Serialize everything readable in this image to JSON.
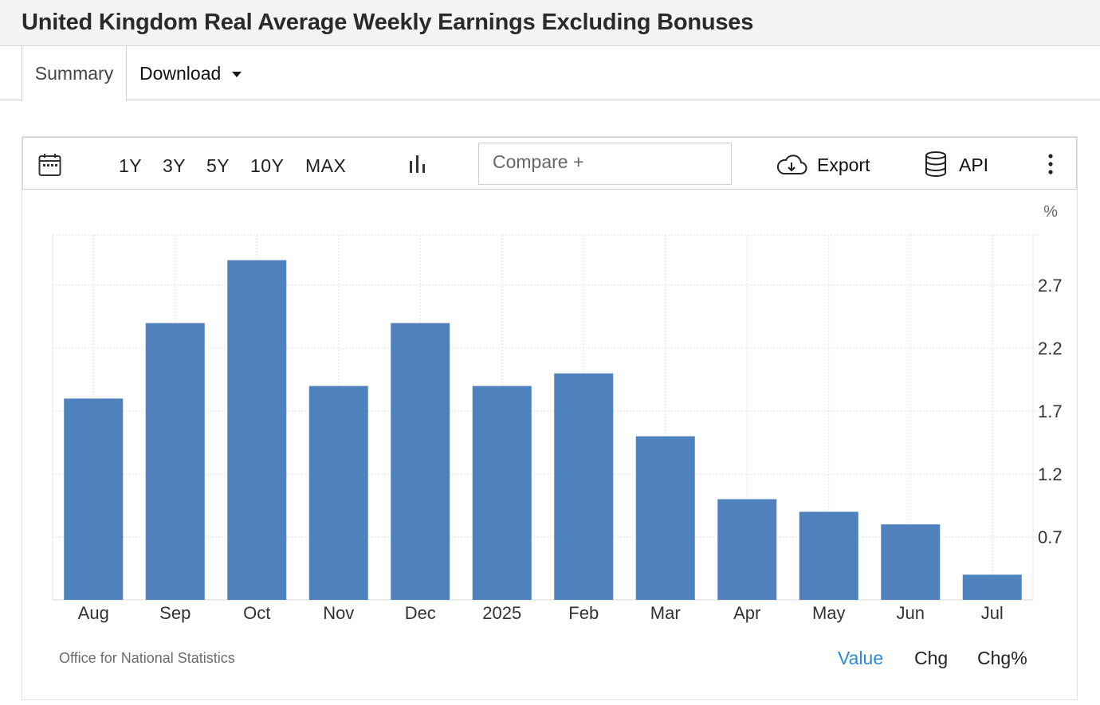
{
  "page_title": "United Kingdom Real Average Weekly Earnings Excluding Bonuses",
  "tabs": {
    "summary": "Summary",
    "download": "Download"
  },
  "toolbar": {
    "ranges": [
      "1Y",
      "3Y",
      "5Y",
      "10Y",
      "MAX"
    ],
    "compare_label": "Compare +",
    "export_label": "Export",
    "api_label": "API"
  },
  "chart_data": {
    "type": "bar",
    "title": "United Kingdom Real Average Weekly Earnings Excluding Bonuses",
    "unit": "%",
    "categories": [
      "Aug",
      "Sep",
      "Oct",
      "Nov",
      "Dec",
      "2025",
      "Feb",
      "Mar",
      "Apr",
      "May",
      "Jun",
      "Jul"
    ],
    "values": [
      1.8,
      2.4,
      2.9,
      1.9,
      2.4,
      1.9,
      2.0,
      1.5,
      1.0,
      0.9,
      0.8,
      0.4
    ],
    "yticks": [
      "0.7",
      "1.2",
      "1.7",
      "2.2",
      "2.7"
    ],
    "ylim": [
      0.2,
      3.1
    ],
    "bar_color": "#4f81bd",
    "y_axis_side": "right",
    "grid": true
  },
  "footer": {
    "source": "Office for National Statistics",
    "view_options": [
      "Value",
      "Chg",
      "Chg%"
    ],
    "active_view": "Value",
    "active_color": "#2b8ad8"
  }
}
